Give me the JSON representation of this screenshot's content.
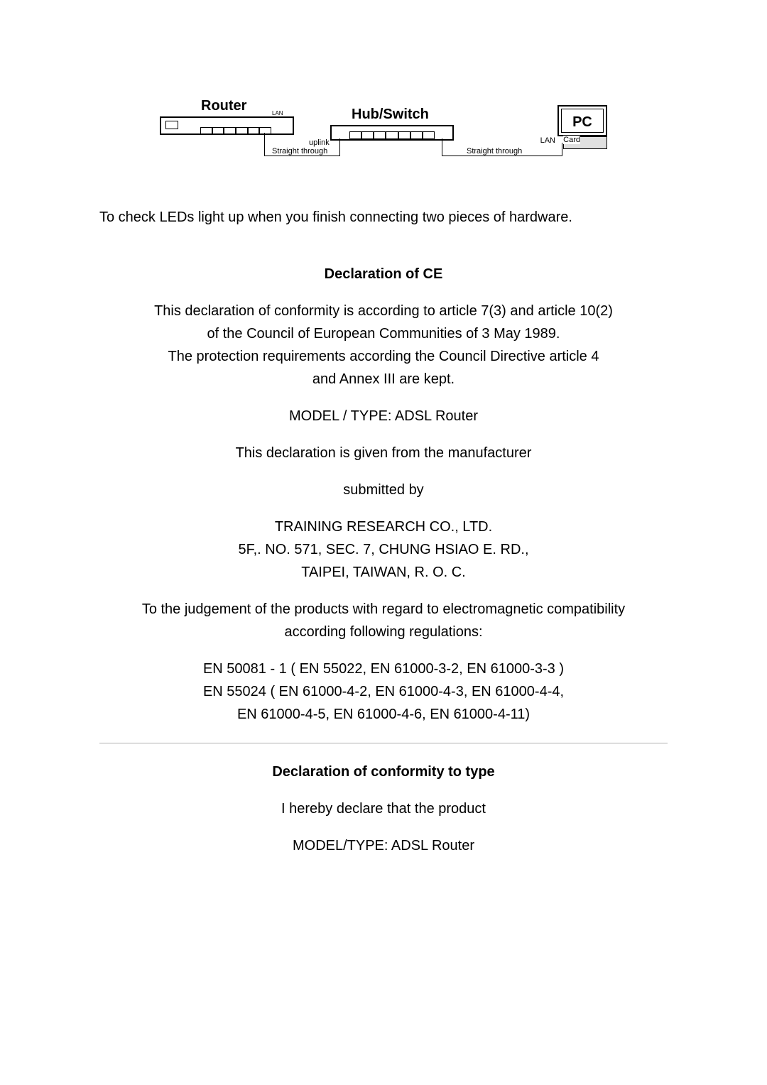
{
  "diagram": {
    "router_label": "Router",
    "hub_label": "Hub/Switch",
    "pc_label": "PC",
    "lan_text": "LAN",
    "card_text": "Card",
    "lan2_text": "LAN",
    "uplink_text": "uplink",
    "straight1": "Straight through",
    "straight2": "Straight through"
  },
  "body": {
    "led_check": "To check LEDs light up when you finish connecting two pieces of hardware.",
    "decl_ce_title": "Declaration of CE",
    "decl_ce_p1_l1": "This declaration of conformity is according to article 7(3) and article 10(2)",
    "decl_ce_p1_l2": "of the Council of European Communities of 3 May 1989.",
    "decl_ce_p1_l3": "The protection requirements according the Council Directive article 4",
    "decl_ce_p1_l4": "and Annex III are kept.",
    "model_type": "MODEL / TYPE: ADSL Router",
    "given_from": "This declaration is given from the manufacturer",
    "submitted_by": "submitted by",
    "company_l1": "TRAINING RESEARCH CO., LTD.",
    "company_l2": "5F,. NO. 571, SEC. 7, CHUNG HSIAO E. RD.,",
    "company_l3": "TAIPEI, TAIWAN, R. O. C.",
    "judgement_l1": "To the judgement of the products with regard to electromagnetic compatibility",
    "judgement_l2": "according following regulations:",
    "en_l1": "EN 50081 - 1 ( EN 55022, EN 61000-3-2, EN 61000-3-3 )",
    "en_l2": "EN 55024 ( EN 61000-4-2, EN 61000-4-3, EN 61000-4-4,",
    "en_l3": "EN 61000-4-5, EN 61000-4-6, EN 61000-4-11)",
    "decl_type_title": "Declaration of conformity to type",
    "hereby": "I hereby declare that the product",
    "model_type2": "MODEL/TYPE: ADSL Router"
  }
}
